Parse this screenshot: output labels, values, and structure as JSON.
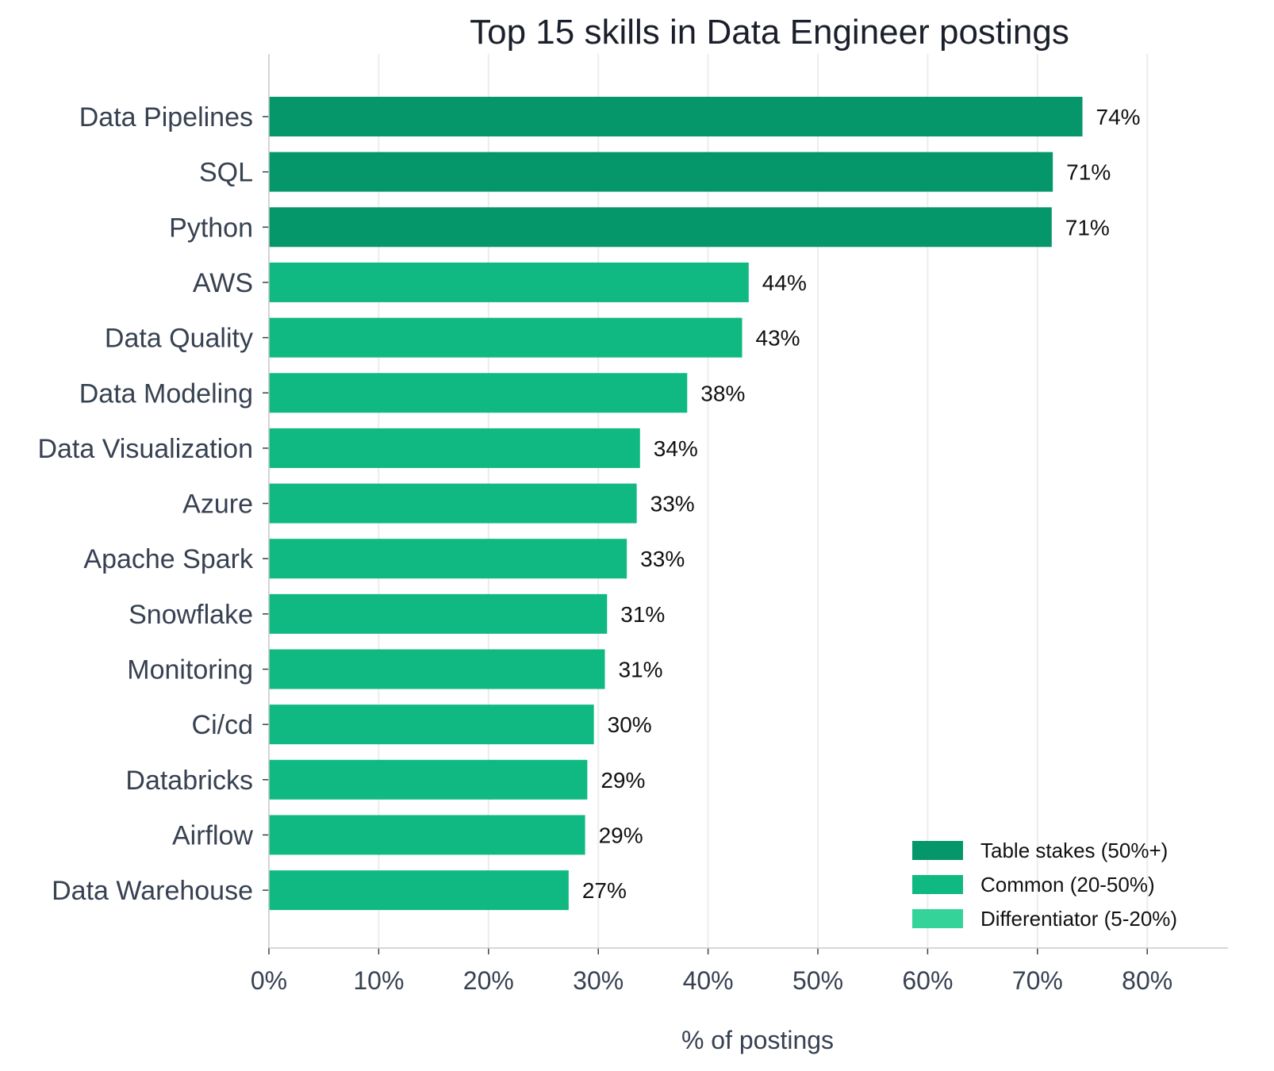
{
  "chart_data": {
    "type": "bar",
    "orientation": "horizontal",
    "title": "Top 15 skills in Data Engineer postings",
    "xlabel": "% of postings",
    "ylabel": "",
    "xlim": [
      0,
      87
    ],
    "xticks": [
      0,
      10,
      20,
      30,
      40,
      50,
      60,
      70,
      80
    ],
    "xtick_labels": [
      "0%",
      "10%",
      "20%",
      "30%",
      "40%",
      "50%",
      "60%",
      "70%",
      "80%"
    ],
    "grid": "vertical",
    "legend_position": "bottom-right",
    "categories": [
      "Data Pipelines",
      "SQL",
      "Python",
      "AWS",
      "Data Quality",
      "Data Modeling",
      "Data Visualization",
      "Azure",
      "Apache Spark",
      "Snowflake",
      "Monitoring",
      "Ci/cd",
      "Databricks",
      "Airflow",
      "Data Warehouse"
    ],
    "values": [
      74.1,
      71.4,
      71.3,
      43.7,
      43.1,
      38.1,
      33.8,
      33.5,
      32.6,
      30.8,
      30.6,
      29.6,
      29.0,
      28.8,
      27.3
    ],
    "labels": [
      "74%",
      "71%",
      "71%",
      "44%",
      "43%",
      "38%",
      "34%",
      "33%",
      "33%",
      "31%",
      "31%",
      "30%",
      "29%",
      "29%",
      "27%"
    ],
    "tiers": [
      "table_stakes",
      "table_stakes",
      "table_stakes",
      "common",
      "common",
      "common",
      "common",
      "common",
      "common",
      "common",
      "common",
      "common",
      "common",
      "common",
      "common"
    ],
    "legend": [
      {
        "key": "table_stakes",
        "label": "Table stakes (50%+)",
        "color": "#059669"
      },
      {
        "key": "common",
        "label": "Common (20-50%)",
        "color": "#10b981"
      },
      {
        "key": "differentiator",
        "label": "Differentiator (5-20%)",
        "color": "#34d399"
      }
    ]
  }
}
